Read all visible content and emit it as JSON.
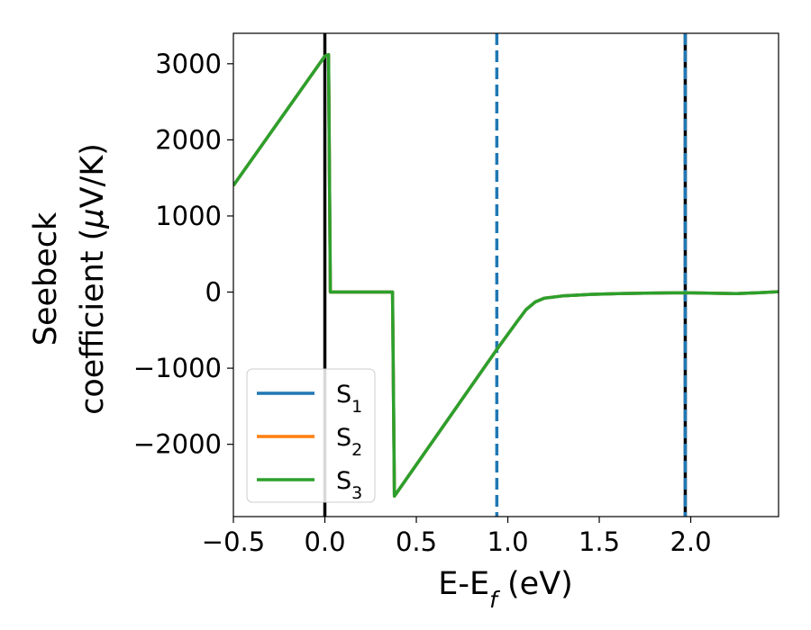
{
  "chart_data": {
    "type": "line",
    "xlabel": {
      "main": "E-E",
      "sub": "f",
      "unit": " (eV)"
    },
    "ylabel": {
      "line1": "Seebeck",
      "line2_prefix": "coefficient  (",
      "greek": "μ",
      "line2_suffix": "V/K)"
    },
    "xlim": [
      -0.5,
      2.48
    ],
    "ylim": [
      -2950,
      3400
    ],
    "xticks": [
      {
        "value": -0.5,
        "label": "−0.5"
      },
      {
        "value": 0.0,
        "label": "0.0"
      },
      {
        "value": 0.5,
        "label": "0.5"
      },
      {
        "value": 1.0,
        "label": "1.0"
      },
      {
        "value": 1.5,
        "label": "1.5"
      },
      {
        "value": 2.0,
        "label": "2.0"
      }
    ],
    "yticks": [
      {
        "value": 3000,
        "label": "3000"
      },
      {
        "value": 2000,
        "label": "2000"
      },
      {
        "value": 1000,
        "label": "1000"
      },
      {
        "value": 0,
        "label": "0"
      },
      {
        "value": -1000,
        "label": "−1000"
      },
      {
        "value": -2000,
        "label": "−2000"
      }
    ],
    "series": [
      {
        "name": "S",
        "sub": "1",
        "color": "#1f77b4",
        "x": [
          -0.5,
          0.0,
          0.02,
          0.03,
          0.37,
          0.38,
          0.95,
          1.05,
          1.1,
          1.15,
          1.2,
          1.3,
          1.45,
          1.6,
          1.75,
          1.9,
          2.0,
          2.1,
          2.25,
          2.4,
          2.48
        ],
        "y": [
          1400,
          3100,
          3120,
          0,
          0,
          -2680,
          -720,
          -390,
          -230,
          -130,
          -80,
          -50,
          -30,
          -20,
          -15,
          -10,
          -10,
          -15,
          -20,
          -5,
          5
        ]
      },
      {
        "name": "S",
        "sub": "2",
        "color": "#ff7f0e",
        "x": [
          -0.5,
          0.0,
          0.02,
          0.03,
          0.37,
          0.38,
          0.95,
          1.05,
          1.1,
          1.15,
          1.2,
          1.3,
          1.45,
          1.6,
          1.75,
          1.9,
          2.0,
          2.1,
          2.25,
          2.4,
          2.48
        ],
        "y": [
          1400,
          3100,
          3120,
          0,
          0,
          -2680,
          -720,
          -390,
          -230,
          -130,
          -80,
          -50,
          -30,
          -20,
          -15,
          -10,
          -10,
          -15,
          -20,
          -5,
          5
        ]
      },
      {
        "name": "S",
        "sub": "3",
        "color": "#2ca02c",
        "x": [
          -0.5,
          0.0,
          0.02,
          0.03,
          0.37,
          0.38,
          0.95,
          1.05,
          1.1,
          1.15,
          1.2,
          1.3,
          1.45,
          1.6,
          1.75,
          1.9,
          2.0,
          2.1,
          2.25,
          2.4,
          2.48
        ],
        "y": [
          1400,
          3100,
          3120,
          0,
          0,
          -2680,
          -720,
          -390,
          -230,
          -130,
          -80,
          -50,
          -30,
          -20,
          -15,
          -10,
          -10,
          -15,
          -20,
          -5,
          5
        ]
      }
    ],
    "vlines": [
      {
        "x": 0.0,
        "color": "#000000",
        "style": "solid"
      },
      {
        "x": 1.97,
        "color": "#000000",
        "style": "solid"
      },
      {
        "x": 0.94,
        "color": "#1f77b4",
        "style": "dashed"
      },
      {
        "x": 1.97,
        "color": "#1f77b4",
        "style": "dashed"
      }
    ],
    "legend": {
      "placement": "lower-left"
    },
    "grid": false
  }
}
